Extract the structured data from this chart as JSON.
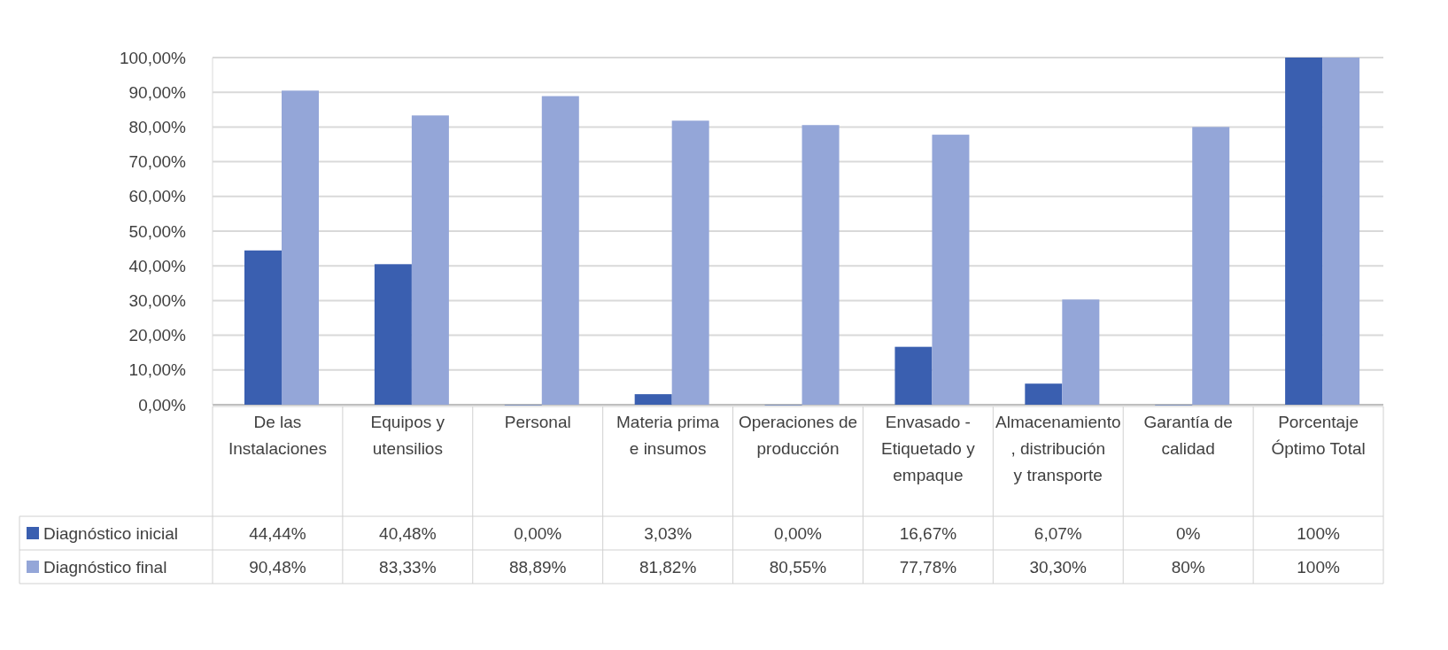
{
  "chart_data": {
    "type": "bar",
    "categories": [
      "De las Instalaciones",
      "Equipos y utensilios",
      "Personal",
      "Materia prima e insumos",
      "Operaciones de producción",
      "Envasado - Etiquetado y empaque",
      "Almacenamiento , distribución y transporte",
      "Garantía de calidad",
      "Porcentaje Óptimo Total"
    ],
    "series": [
      {
        "name": "Diagnóstico inicial",
        "color": "#3a5fb0",
        "values": [
          44.44,
          40.48,
          0,
          3.03,
          0,
          16.67,
          6.07,
          0,
          100
        ],
        "value_labels": [
          "44,44%",
          "40,48%",
          "0,00%",
          "3,03%",
          "0,00%",
          "16,67%",
          "6,07%",
          "0%",
          "100%"
        ]
      },
      {
        "name": "Diagnóstico final",
        "color": "#94a6d8",
        "values": [
          90.48,
          83.33,
          88.89,
          81.82,
          80.55,
          77.78,
          30.3,
          80,
          100
        ],
        "value_labels": [
          "90,48%",
          "83,33%",
          "88,89%",
          "81,82%",
          "80,55%",
          "77,78%",
          "30,30%",
          "80%",
          "100%"
        ]
      }
    ],
    "ylim": [
      0,
      100
    ],
    "yticks": [
      {
        "value": 0,
        "label": "0,00%"
      },
      {
        "value": 10,
        "label": "10,00%"
      },
      {
        "value": 20,
        "label": "20,00%"
      },
      {
        "value": 30,
        "label": "30,00%"
      },
      {
        "value": 40,
        "label": "40,00%"
      },
      {
        "value": 50,
        "label": "50,00%"
      },
      {
        "value": 60,
        "label": "60,00%"
      },
      {
        "value": 70,
        "label": "70,00%"
      },
      {
        "value": 80,
        "label": "80,00%"
      },
      {
        "value": 90,
        "label": "90,00%"
      },
      {
        "value": 100,
        "label": "100,00%"
      }
    ],
    "grid": "y",
    "legend": "bottom left"
  }
}
